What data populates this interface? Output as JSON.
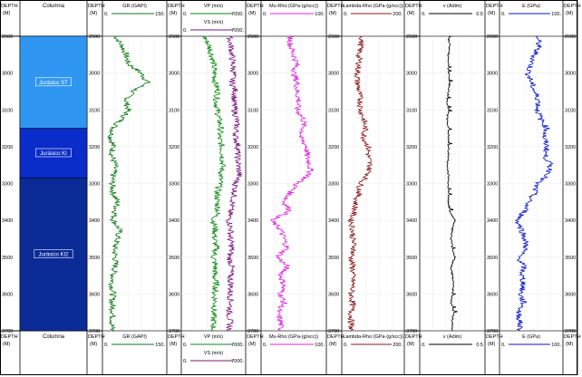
{
  "chart_data": {
    "type": "line",
    "depth_header": "DEPTH",
    "depth_unit": "(M)",
    "depth_ticks": [
      "2900",
      "3000",
      "3100",
      "3200",
      "3300",
      "3400",
      "3500",
      "3600",
      "3700"
    ],
    "depth_range": [
      2900,
      3700
    ],
    "columna": {
      "header": "Columna",
      "zones": [
        {
          "label": "Jurásico ST",
          "top": 2900,
          "base": 3150,
          "color": "#2f97f2"
        },
        {
          "label": "Jurásico KI",
          "top": 3150,
          "base": 3285,
          "color": "#0a2cc8"
        },
        {
          "label": "Jurásico KI2",
          "top": 3285,
          "base": 3700,
          "color": "#0a2a96"
        }
      ]
    },
    "tracks": [
      {
        "name": "GR (GAPI)",
        "min": "0.",
        "max": "150.",
        "xlim": [
          0,
          150
        ],
        "color": "#0a7a10"
      },
      {
        "name": "VP (m/s)",
        "min": "0.",
        "max": "7000.",
        "xlim": [
          0,
          7000
        ],
        "color": "#0a8a10",
        "second": {
          "name": "VS (m/s)",
          "min": "0.",
          "max": "7000.",
          "color": "#7a1580"
        }
      },
      {
        "name": "Mu-Rho (GPa-(g/scc))",
        "min": "0.",
        "max": "100.",
        "xlim": [
          0,
          100
        ],
        "color": "#e020e0"
      },
      {
        "name": "Lambda-Rho (GPa-(g/scc))",
        "min": "0.",
        "max": "200.",
        "xlim": [
          0,
          200
        ],
        "color": "#8a1818"
      },
      {
        "name": "v (Adim)",
        "min": "0.",
        "max": "0.5",
        "xlim": [
          0,
          0.5
        ],
        "color": "#000000"
      },
      {
        "name": "E (GPa)",
        "min": "0.",
        "max": "100.",
        "xlim": [
          0,
          100
        ],
        "color": "#0a14c8"
      }
    ],
    "series": [
      {
        "track": 0,
        "depths": [
          2900,
          2925,
          2950,
          2975,
          3000,
          3025,
          3050,
          3075,
          3100,
          3125,
          3150,
          3175,
          3200,
          3225,
          3250,
          3275,
          3300,
          3325,
          3350,
          3375,
          3400,
          3425,
          3450,
          3475,
          3500,
          3525,
          3550,
          3575,
          3600,
          3625,
          3650,
          3675,
          3700
        ],
        "values": [
          30,
          45,
          55,
          60,
          90,
          105,
          70,
          55,
          60,
          45,
          25,
          20,
          25,
          22,
          30,
          25,
          22,
          25,
          35,
          30,
          25,
          40,
          35,
          28,
          30,
          30,
          25,
          22,
          25,
          22,
          25,
          23,
          22
        ]
      },
      {
        "track": 1,
        "depths": [
          2900,
          2925,
          2950,
          2975,
          3000,
          3025,
          3050,
          3075,
          3100,
          3125,
          3150,
          3175,
          3200,
          3225,
          3250,
          3275,
          3300,
          3325,
          3350,
          3375,
          3400,
          3425,
          3450,
          3475,
          3500,
          3525,
          3550,
          3575,
          3600,
          3625,
          3650,
          3675,
          3700
        ],
        "values": [
          2500,
          3000,
          3300,
          3500,
          3600,
          3700,
          4000,
          3800,
          3900,
          4100,
          4300,
          4100,
          4400,
          4500,
          4500,
          4300,
          4200,
          3900,
          3900,
          4000,
          3500,
          3700,
          3600,
          3800,
          3500,
          3700,
          3600,
          3800,
          3600,
          3700,
          3500,
          3500,
          3500
        ]
      },
      {
        "track": 1,
        "depths": [
          2900,
          2925,
          2950,
          2975,
          3000,
          3025,
          3050,
          3075,
          3100,
          3125,
          3150,
          3175,
          3200,
          3225,
          3250,
          3275,
          3300,
          3325,
          3350,
          3375,
          3400,
          3425,
          3450,
          3475,
          3500,
          3525,
          3550,
          3575,
          3600,
          3625,
          3650,
          3675,
          3700
        ],
        "values": [
          5200,
          5400,
          5500,
          5600,
          5700,
          5500,
          5900,
          5700,
          5800,
          6000,
          6000,
          5900,
          6200,
          6100,
          6200,
          6300,
          5900,
          5800,
          5600,
          5300,
          5200,
          5400,
          5300,
          5500,
          5200,
          5500,
          5300,
          5400,
          5300,
          5400,
          5200,
          5300,
          5200
        ]
      },
      {
        "track": 2,
        "depths": [
          2900,
          2925,
          2950,
          2975,
          3000,
          3025,
          3050,
          3075,
          3100,
          3125,
          3150,
          3175,
          3200,
          3225,
          3250,
          3275,
          3300,
          3325,
          3350,
          3375,
          3400,
          3425,
          3450,
          3475,
          3500,
          3525,
          3550,
          3575,
          3600,
          3625,
          3650,
          3675,
          3700
        ],
        "values": [
          45,
          45,
          50,
          55,
          50,
          55,
          55,
          58,
          55,
          65,
          65,
          60,
          70,
          70,
          75,
          75,
          55,
          45,
          35,
          45,
          15,
          30,
          35,
          40,
          25,
          40,
          30,
          35,
          30,
          35,
          25,
          30,
          30
        ]
      },
      {
        "track": 3,
        "depths": [
          2900,
          2925,
          2950,
          2975,
          3000,
          3025,
          3050,
          3075,
          3100,
          3125,
          3150,
          3175,
          3200,
          3225,
          3250,
          3275,
          3300,
          3325,
          3350,
          3375,
          3400,
          3425,
          3450,
          3475,
          3500,
          3525,
          3550,
          3575,
          3600,
          3625,
          3650,
          3675,
          3700
        ],
        "values": [
          65,
          60,
          55,
          55,
          50,
          50,
          55,
          60,
          60,
          70,
          75,
          70,
          85,
          85,
          90,
          85,
          60,
          55,
          45,
          40,
          30,
          35,
          35,
          40,
          30,
          35,
          35,
          35,
          30,
          35,
          30,
          30,
          30
        ]
      },
      {
        "track": 4,
        "depths": [
          2900,
          2925,
          2950,
          2975,
          3000,
          3025,
          3050,
          3075,
          3100,
          3125,
          3150,
          3175,
          3200,
          3225,
          3250,
          3275,
          3300,
          3325,
          3350,
          3375,
          3400,
          3425,
          3450,
          3475,
          3500,
          3525,
          3550,
          3575,
          3600,
          3625,
          3650,
          3675,
          3700
        ],
        "values": [
          0.22,
          0.23,
          0.22,
          0.22,
          0.22,
          0.23,
          0.22,
          0.21,
          0.22,
          0.21,
          0.22,
          0.22,
          0.22,
          0.22,
          0.21,
          0.22,
          0.22,
          0.22,
          0.22,
          0.23,
          0.27,
          0.25,
          0.24,
          0.25,
          0.27,
          0.24,
          0.25,
          0.26,
          0.25,
          0.24,
          0.26,
          0.25,
          0.25
        ]
      },
      {
        "track": 5,
        "depths": [
          2900,
          2925,
          2950,
          2975,
          3000,
          3025,
          3050,
          3075,
          3100,
          3125,
          3150,
          3175,
          3200,
          3225,
          3250,
          3275,
          3300,
          3325,
          3350,
          3375,
          3400,
          3425,
          3450,
          3475,
          3500,
          3525,
          3550,
          3575,
          3600,
          3625,
          3650,
          3675,
          3700
        ],
        "values": [
          60,
          62,
          55,
          50,
          45,
          50,
          55,
          62,
          60,
          65,
          75,
          70,
          75,
          72,
          80,
          78,
          58,
          55,
          45,
          40,
          28,
          35,
          40,
          42,
          30,
          38,
          35,
          38,
          33,
          38,
          30,
          32,
          32
        ]
      }
    ]
  }
}
